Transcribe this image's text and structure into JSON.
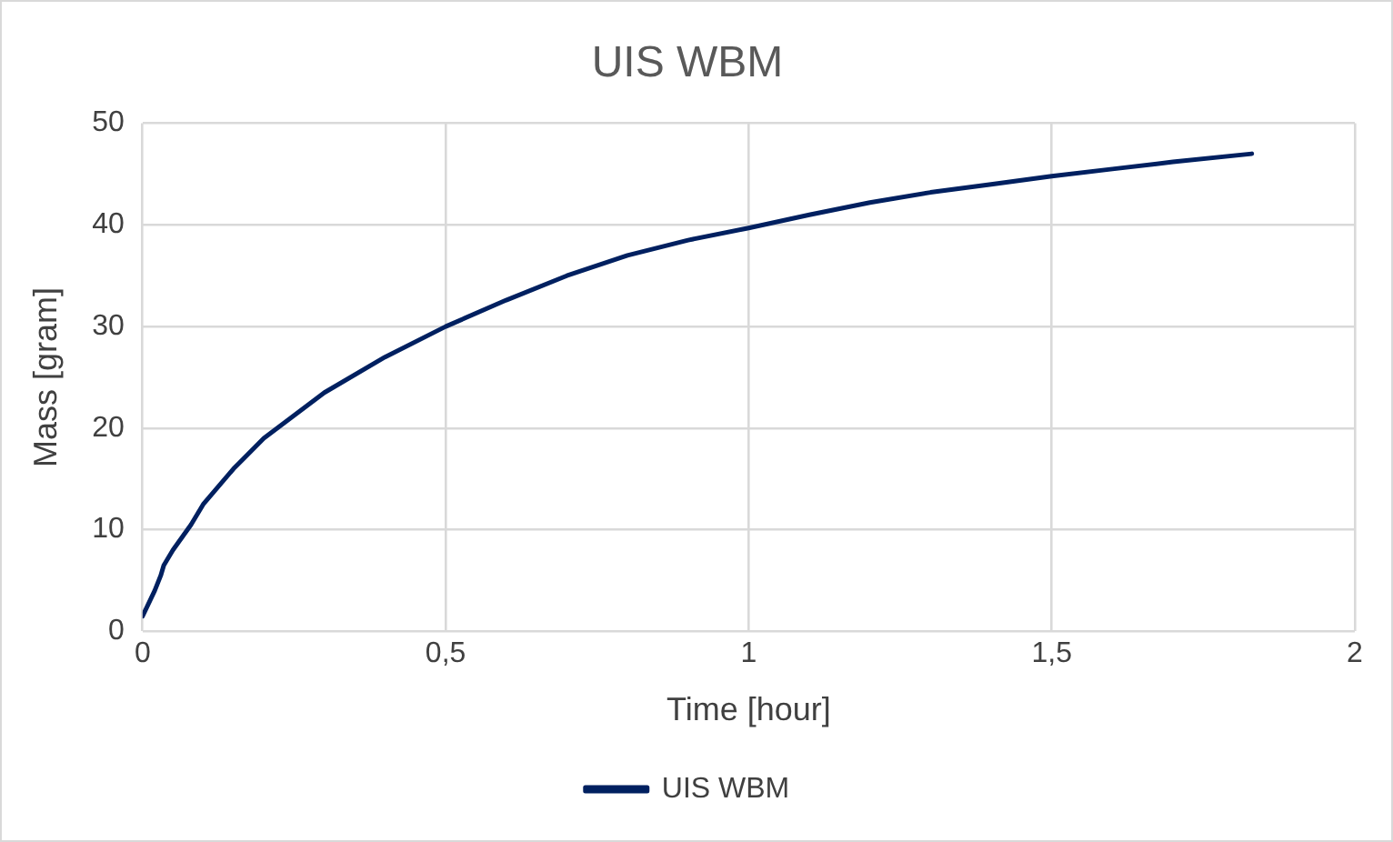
{
  "chart_data": {
    "type": "line",
    "title": "UIS WBM",
    "xlabel": "Time [hour]",
    "ylabel": "Mass [gram]",
    "x": [
      0,
      0.02,
      0.03,
      0.035,
      0.05,
      0.08,
      0.1,
      0.15,
      0.2,
      0.3,
      0.4,
      0.5,
      0.6,
      0.7,
      0.8,
      0.9,
      1.0,
      1.1,
      1.2,
      1.3,
      1.4,
      1.5,
      1.6,
      1.7,
      1.83
    ],
    "series": [
      {
        "name": "UIS WBM",
        "color": "#002060",
        "values": [
          1.5,
          4,
          5.5,
          6.5,
          8,
          10.5,
          12.5,
          16,
          19,
          23.5,
          27,
          30,
          32.6,
          35,
          37,
          38.5,
          39.7,
          41,
          42.2,
          43.2,
          44,
          44.8,
          45.5,
          46.2,
          47
        ]
      }
    ],
    "xlim": [
      0,
      2
    ],
    "xticks": [
      0,
      {
        "value": 0.5,
        "label": "0,5"
      },
      1,
      {
        "value": 1.5,
        "label": "1,5"
      },
      2
    ],
    "ylim": [
      0,
      50
    ],
    "yticks": [
      0,
      10,
      20,
      30,
      40,
      50
    ],
    "grid": true,
    "legend": "bottom",
    "marker": "none",
    "line_style": "solid"
  }
}
